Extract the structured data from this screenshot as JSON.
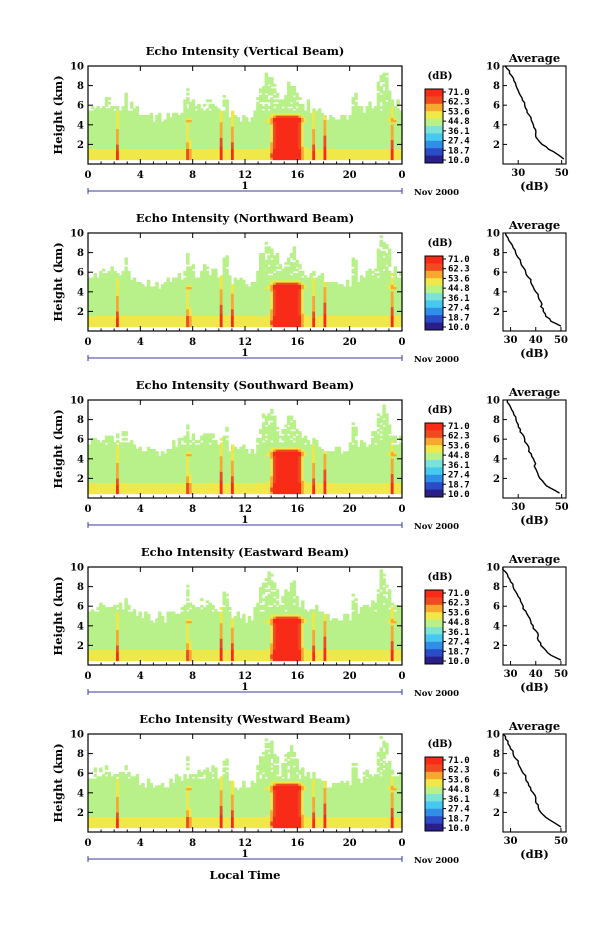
{
  "figure": {
    "panel_titles": [
      "Echo Intensity (Vertical Beam)",
      "Echo Intensity (Northward Beam)",
      "Echo Intensity (Southward Beam)",
      "Echo Intensity (Eastward Beam)",
      "Echo Intensity (Westward Beam)"
    ],
    "ylabel": "Height (km)",
    "xlabel": "Local Time",
    "date_label": "Nov 2000",
    "day_label": "1",
    "colorbar_unit": "(dB)",
    "colorbar_ticks": [
      "71.0",
      "62.3",
      "53.6",
      "44.8",
      "36.1",
      "27.4",
      "18.7",
      "10.0"
    ],
    "avg_title": "Average",
    "avg_xlabel": "(dB)",
    "colors": {
      "colormap": [
        "#2a1f8a",
        "#2b4dc8",
        "#2f8fe8",
        "#46c8f0",
        "#7ce3d8",
        "#b8f08a",
        "#f0e848",
        "#f8a830",
        "#f04a20",
        "#f82a18"
      ]
    }
  },
  "chart_data": [
    {
      "type": "heatmap",
      "title": "Echo Intensity (Vertical Beam)",
      "xlabel": "",
      "ylabel": "Height (km)",
      "x_ticks": [
        "0",
        "4",
        "8",
        "12",
        "16",
        "20",
        "0"
      ],
      "y_ticks": [
        "2",
        "4",
        "6",
        "8",
        "10"
      ],
      "xlim": [
        0,
        24
      ],
      "ylim": [
        0,
        10
      ],
      "zlim": [
        10.0,
        71.0
      ],
      "colorbar_label": "(dB)",
      "average_profile": {
        "title": "Average",
        "xlabel": "(dB)",
        "x_ticks": [
          "30",
          "50"
        ],
        "xlim": [
          23,
          52
        ],
        "height": [
          0.5,
          1,
          1.5,
          2,
          2.5,
          3,
          3.5,
          4,
          4.5,
          5,
          5.5,
          6,
          6.5,
          7,
          7.5,
          8,
          8.5,
          9,
          9.5,
          10
        ],
        "value": [
          51,
          48,
          44,
          41,
          39,
          38,
          38,
          37,
          36,
          35,
          34,
          33,
          32,
          31,
          30,
          29,
          28,
          27,
          26,
          24
        ]
      }
    },
    {
      "type": "heatmap",
      "title": "Echo Intensity (Northward Beam)",
      "xlabel": "",
      "ylabel": "Height (km)",
      "x_ticks": [
        "0",
        "4",
        "8",
        "12",
        "16",
        "20",
        "0"
      ],
      "y_ticks": [
        "2",
        "4",
        "6",
        "8",
        "10"
      ],
      "xlim": [
        0,
        24
      ],
      "ylim": [
        0,
        10
      ],
      "zlim": [
        10.0,
        71.0
      ],
      "colorbar_label": "(dB)",
      "average_profile": {
        "title": "Average",
        "xlabel": "(dB)",
        "x_ticks": [
          "30",
          "40",
          "50"
        ],
        "xlim": [
          27,
          52
        ],
        "height": [
          0.5,
          1,
          1.5,
          2,
          2.5,
          3,
          3.5,
          4,
          4.5,
          5,
          5.5,
          6,
          6.5,
          7,
          7.5,
          8,
          8.5,
          9,
          9.5,
          10
        ],
        "value": [
          50,
          46,
          44,
          43,
          42,
          42,
          41,
          40,
          39,
          38,
          37,
          36,
          35,
          34,
          33,
          32,
          31,
          30,
          29,
          28
        ]
      }
    },
    {
      "type": "heatmap",
      "title": "Echo Intensity (Southward Beam)",
      "xlabel": "",
      "ylabel": "Height (km)",
      "x_ticks": [
        "0",
        "4",
        "8",
        "12",
        "16",
        "20",
        "0"
      ],
      "y_ticks": [
        "2",
        "4",
        "6",
        "8",
        "10"
      ],
      "xlim": [
        0,
        24
      ],
      "ylim": [
        0,
        10
      ],
      "zlim": [
        10.0,
        71.0
      ],
      "colorbar_label": "(dB)",
      "average_profile": {
        "title": "Average",
        "xlabel": "(dB)",
        "x_ticks": [
          "30",
          "50"
        ],
        "xlim": [
          23,
          52
        ],
        "height": [
          0.5,
          1,
          1.5,
          2,
          2.5,
          3,
          3.5,
          4,
          4.5,
          5,
          5.5,
          6,
          6.5,
          7,
          7.5,
          8,
          8.5,
          9,
          9.5,
          10
        ],
        "value": [
          49,
          45,
          42,
          40,
          39,
          38,
          38,
          37,
          36,
          35,
          34,
          33,
          32,
          31,
          30,
          29,
          28,
          27,
          26,
          25
        ]
      }
    },
    {
      "type": "heatmap",
      "title": "Echo Intensity (Eastward Beam)",
      "xlabel": "",
      "ylabel": "Height (km)",
      "x_ticks": [
        "0",
        "4",
        "8",
        "12",
        "16",
        "20",
        "0"
      ],
      "y_ticks": [
        "2",
        "4",
        "6",
        "8",
        "10"
      ],
      "xlim": [
        0,
        24
      ],
      "ylim": [
        0,
        10
      ],
      "zlim": [
        10.0,
        71.0
      ],
      "colorbar_label": "(dB)",
      "average_profile": {
        "title": "Average",
        "xlabel": "(dB)",
        "x_ticks": [
          "30",
          "40",
          "50"
        ],
        "xlim": [
          27,
          52
        ],
        "height": [
          0.5,
          1,
          1.5,
          2,
          2.5,
          3,
          3.5,
          4,
          4.5,
          5,
          5.5,
          6,
          6.5,
          7,
          7.5,
          8,
          8.5,
          9,
          9.5,
          10
        ],
        "value": [
          50,
          46,
          44,
          42,
          41,
          41,
          40,
          39,
          38,
          37,
          36,
          35,
          34,
          33,
          32,
          31,
          30,
          29,
          28,
          27
        ]
      }
    },
    {
      "type": "heatmap",
      "title": "Echo Intensity (Westward Beam)",
      "xlabel": "Local Time",
      "ylabel": "Height (km)",
      "x_ticks": [
        "0",
        "4",
        "8",
        "12",
        "16",
        "20",
        "0"
      ],
      "y_ticks": [
        "2",
        "4",
        "6",
        "8",
        "10"
      ],
      "xlim": [
        0,
        24
      ],
      "ylim": [
        0,
        10
      ],
      "zlim": [
        10.0,
        71.0
      ],
      "colorbar_label": "(dB)",
      "average_profile": {
        "title": "Average",
        "xlabel": "(dB)",
        "x_ticks": [
          "30",
          "50"
        ],
        "xlim": [
          27,
          52
        ],
        "height": [
          0.5,
          1,
          1.5,
          2,
          2.5,
          3,
          3.5,
          4,
          4.5,
          5,
          5.5,
          6,
          6.5,
          7,
          7.5,
          8,
          8.5,
          9,
          9.5,
          10
        ],
        "value": [
          50,
          47,
          44,
          42,
          41,
          40,
          40,
          39,
          38,
          37,
          36,
          35,
          34,
          33,
          32,
          31,
          30,
          29,
          28,
          27
        ]
      }
    }
  ]
}
